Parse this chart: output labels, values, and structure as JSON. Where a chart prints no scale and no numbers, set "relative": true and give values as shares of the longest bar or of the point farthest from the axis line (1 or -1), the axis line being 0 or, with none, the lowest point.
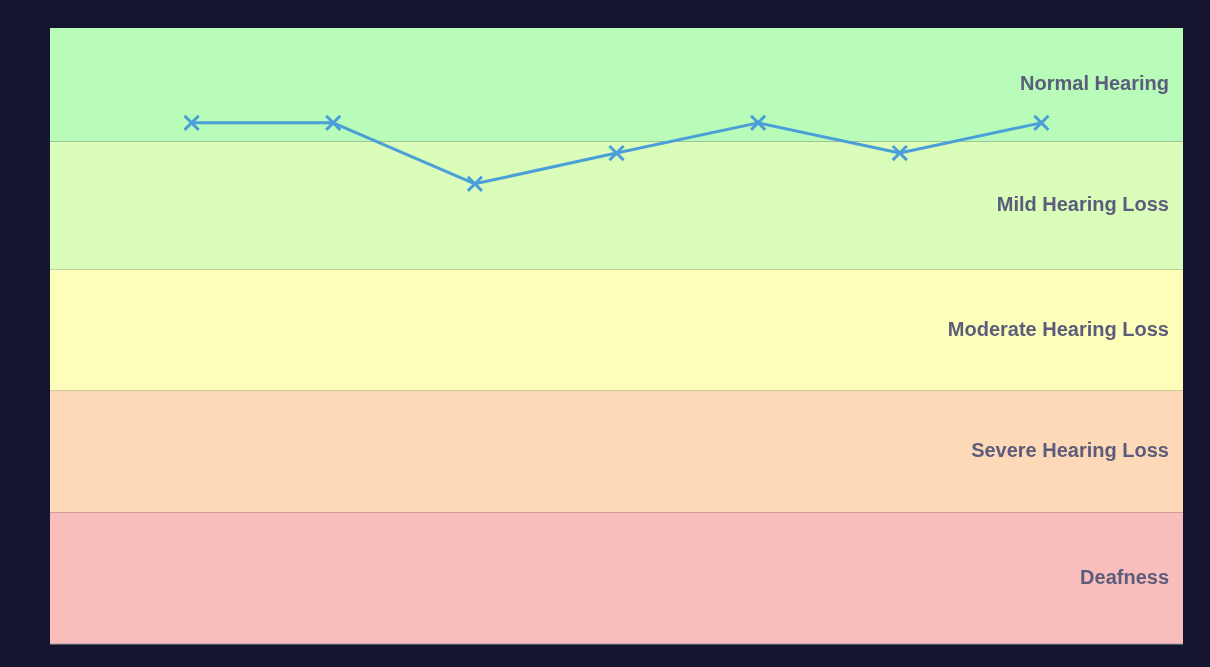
{
  "chart_data": {
    "type": "line",
    "relative": true,
    "categories": [
      null,
      null,
      null,
      null,
      null,
      null,
      null
    ],
    "values": [
      1,
      1,
      0.883,
      0.942,
      1,
      0.942,
      1
    ],
    "color": "#4a9fd8",
    "marker": "cross",
    "bands": [
      {
        "axis": "y",
        "from": 0.964,
        "to": 1.182,
        "label": "Normal Hearing",
        "color": "#b9fcb9"
      },
      {
        "axis": "y",
        "from": 0.718,
        "to": 0.964,
        "label": "Mild Hearing Loss",
        "color": "#dafdba"
      },
      {
        "axis": "y",
        "from": 0.486,
        "to": 0.718,
        "label": "Moderate Hearing Loss",
        "color": "#fefebb"
      },
      {
        "axis": "y",
        "from": 0.253,
        "to": 0.486,
        "label": "Severe Hearing Loss",
        "color": "#fdd9b8"
      },
      {
        "axis": "y",
        "from": 0,
        "to": 0.253,
        "label": "Deafness",
        "color": "#f9bdbb"
      }
    ]
  }
}
